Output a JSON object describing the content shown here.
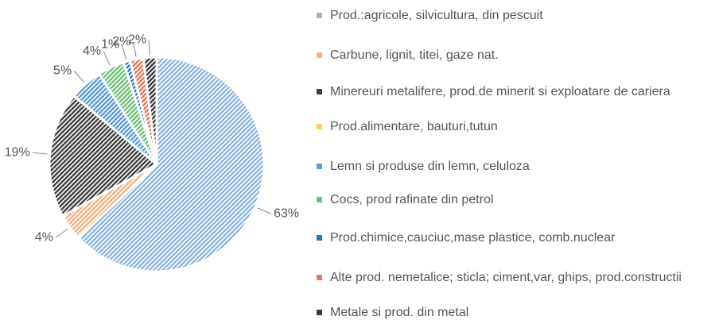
{
  "chart_data": {
    "type": "pie",
    "categories": [
      "Prod.:agricole, silvicultura, din pescuit",
      "Carbune, lignit, titei, gaze nat.",
      "Minereuri metalifere, prod.de minerit si exploatare de cariera",
      "Prod.alimentare, bauturi,tutun",
      "Lemn si produse din lemn, celuloza",
      "Cocs, prod rafinate din petrol",
      "Prod.chimice,cauciuc,mase plastice, comb.nuclear",
      "Alte prod. nemetalice; sticla; ciment,var, ghips, prod.constructii",
      "Metale si prod. din metal"
    ],
    "values": [
      63,
      4,
      19,
      0,
      5,
      4,
      1,
      2,
      2
    ],
    "value_labels": [
      "63%",
      "4%",
      "19%",
      null,
      "5%",
      "4%",
      "1%",
      "2%",
      "2%"
    ],
    "colors": [
      "#8fb6dc",
      "#f4b183",
      "#404040",
      "#ffd24d",
      "#5b9bd5",
      "#70c07a",
      "#2e75b6",
      "#e07a5f",
      "#3a3a3a"
    ],
    "legend": "right"
  }
}
